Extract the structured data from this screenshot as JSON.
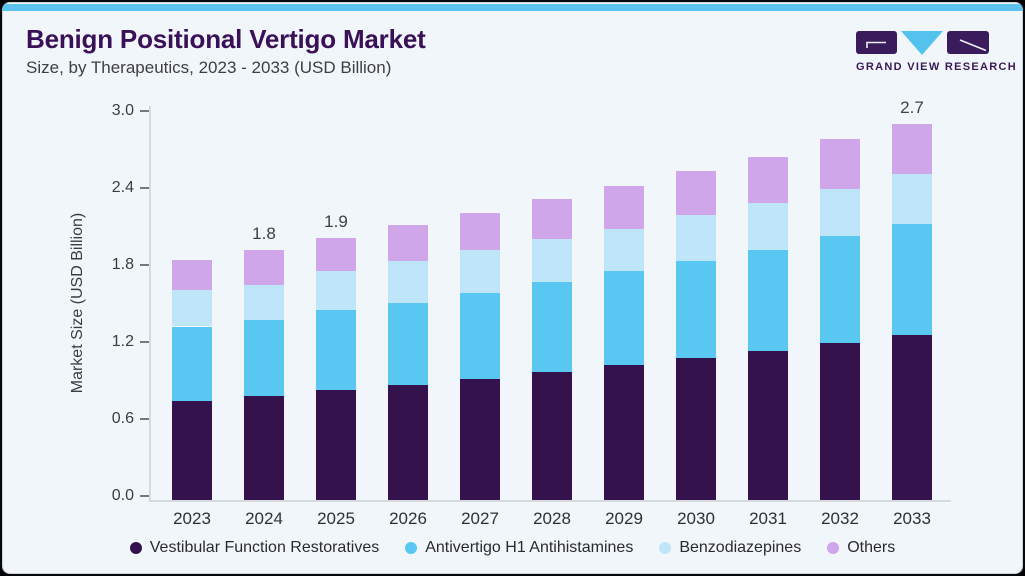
{
  "header": {
    "title": "Benign Positional Vertigo Market",
    "subtitle": "Size, by Therapeutics, 2023 - 2033 (USD Billion)"
  },
  "logo": {
    "wordmark": "GRAND VIEW RESEARCH"
  },
  "colors": {
    "background": "#F0F6FA",
    "accent_strip": "#5BC3EE",
    "title": "#3A1058",
    "logo_dark": "#3A1C5C",
    "logo_triangle": "#53C3EE",
    "axis_line": "#D4DAE0",
    "tick_mark": "#74787E"
  },
  "chart_data": {
    "type": "bar",
    "stacked": true,
    "title": "Benign Positional Vertigo Market",
    "subtitle": "Size, by Therapeutics, 2023 - 2033 (USD Billion)",
    "categories": [
      "2023",
      "2024",
      "2025",
      "2026",
      "2027",
      "2028",
      "2029",
      "2030",
      "2031",
      "2032",
      "2033"
    ],
    "series": [
      {
        "name": "Vestibular Function Restoratives",
        "color": "#33124E",
        "values": [
          0.71,
          0.75,
          0.79,
          0.83,
          0.87,
          0.92,
          0.97,
          1.02,
          1.07,
          1.13,
          1.19
        ]
      },
      {
        "name": "Antivertigo H1 Antihistamines",
        "color": "#58C7F2",
        "values": [
          0.54,
          0.55,
          0.58,
          0.59,
          0.62,
          0.65,
          0.68,
          0.7,
          0.73,
          0.77,
          0.8
        ]
      },
      {
        "name": "Benzodiazepines",
        "color": "#BEE6F8",
        "values": [
          0.26,
          0.25,
          0.28,
          0.3,
          0.31,
          0.31,
          0.3,
          0.33,
          0.34,
          0.34,
          0.36
        ]
      },
      {
        "name": "Others",
        "color": "#CFA6E9",
        "values": [
          0.22,
          0.25,
          0.24,
          0.26,
          0.27,
          0.29,
          0.31,
          0.32,
          0.33,
          0.36,
          0.36
        ]
      }
    ],
    "annotations": [
      {
        "category": "2024",
        "label": "1.8"
      },
      {
        "category": "2025",
        "label": "1.9"
      },
      {
        "category": "2033",
        "label": "2.7"
      }
    ],
    "xlabel": "",
    "ylabel": "Market Size (USD Billion)",
    "yticks": [
      "0.0",
      "0.6",
      "1.2",
      "1.8",
      "2.4",
      "3.0"
    ],
    "ylim": [
      0,
      3.0
    ],
    "grid": false,
    "legend_position": "bottom"
  }
}
